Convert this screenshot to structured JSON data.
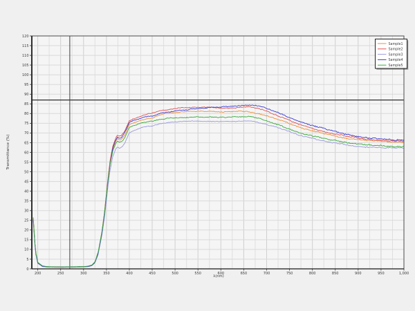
{
  "chart_data": {
    "type": "line",
    "title": "",
    "xlabel": "λ(nm)",
    "ylabel": "Transmittance (%)",
    "xlim": [
      187,
      1000
    ],
    "ylim": [
      0,
      120
    ],
    "grid": "on",
    "minor_x_grid_step_nm": 25,
    "y_grid_step_pct": 5,
    "legend_position": "top-right",
    "cursor": {
      "wavelength_nm": 270,
      "transmittance_pct": 87
    },
    "x_tick_values": [
      200,
      250,
      300,
      350,
      400,
      450,
      500,
      550,
      600,
      650,
      700,
      750,
      800,
      850,
      900,
      950,
      1000
    ],
    "x_tick_labels": [
      "200",
      "250",
      "300",
      "350",
      "400",
      "450",
      "500",
      "550",
      "600",
      "650",
      "700",
      "750",
      "800",
      "850",
      "900",
      "950",
      "1,000"
    ],
    "y_tick_values": [
      0,
      5,
      10,
      15,
      20,
      25,
      30,
      35,
      40,
      45,
      50,
      55,
      60,
      65,
      70,
      75,
      80,
      85,
      90,
      95,
      100,
      105,
      110,
      115,
      120
    ],
    "y_tick_labels": [
      "0",
      "5",
      "10",
      "15",
      "20",
      "25",
      "30",
      "35",
      "40",
      "45",
      "50",
      "55",
      "60",
      "65",
      "70",
      "75",
      "80",
      "85",
      "90",
      "95",
      "100",
      "105",
      "110",
      "115",
      "120"
    ],
    "x": [
      190,
      195,
      200,
      210,
      220,
      240,
      260,
      280,
      300,
      310,
      318,
      325,
      332,
      340,
      346,
      352,
      358,
      364,
      370,
      374,
      378,
      383,
      390,
      400,
      410,
      420,
      430,
      440,
      450,
      460,
      470,
      480,
      490,
      500,
      520,
      540,
      560,
      580,
      600,
      620,
      640,
      660,
      670,
      680,
      700,
      720,
      740,
      760,
      780,
      800,
      820,
      840,
      860,
      880,
      900,
      920,
      940,
      960,
      980,
      1000
    ],
    "series": [
      {
        "name": "Sample1",
        "color": "#ee8f3a",
        "values": [
          26.2,
          9.2,
          3.3,
          1.5,
          1.1,
          1.0,
          0.9,
          1.0,
          1.1,
          1.3,
          1.8,
          3.4,
          8.2,
          18.3,
          29.0,
          42.5,
          54.3,
          61.5,
          65.4,
          66.8,
          66.2,
          66.6,
          68.8,
          74.4,
          75.4,
          76.1,
          77.0,
          77.6,
          77.9,
          78.6,
          79.3,
          79.7,
          80.0,
          80.2,
          80.6,
          80.8,
          80.8,
          80.7,
          80.6,
          80.7,
          80.9,
          81.0,
          80.8,
          80.3,
          79.1,
          77.5,
          75.8,
          73.8,
          72.2,
          71.0,
          69.9,
          68.9,
          68.0,
          67.2,
          66.6,
          66.0,
          65.5,
          65.1,
          64.9,
          64.8
        ]
      },
      {
        "name": "Sample2",
        "color": "#e05050",
        "values": [
          26.0,
          9.0,
          3.2,
          1.4,
          1.1,
          0.9,
          0.9,
          1.0,
          1.1,
          1.3,
          1.8,
          3.5,
          8.5,
          19.0,
          30.0,
          44.0,
          56.0,
          63.5,
          67.5,
          69.0,
          68.4,
          68.8,
          71.2,
          76.5,
          77.5,
          78.1,
          79.0,
          79.6,
          79.9,
          80.6,
          81.3,
          81.7,
          82.0,
          82.2,
          82.6,
          82.8,
          82.9,
          82.8,
          82.6,
          82.7,
          82.9,
          83.1,
          82.9,
          82.4,
          81.1,
          79.4,
          77.6,
          75.4,
          73.6,
          72.2,
          71.0,
          69.9,
          68.9,
          68.1,
          67.3,
          66.7,
          66.1,
          65.7,
          65.4,
          65.3
        ]
      },
      {
        "name": "Sample3",
        "color": "#9a9ade",
        "values": [
          24.8,
          8.2,
          2.8,
          1.2,
          0.9,
          0.8,
          0.8,
          0.9,
          1.0,
          1.1,
          1.6,
          3.1,
          7.5,
          16.8,
          26.8,
          39.5,
          50.8,
          57.8,
          61.6,
          62.9,
          62.4,
          62.7,
          64.7,
          70.4,
          71.4,
          72.0,
          72.8,
          73.3,
          73.6,
          74.1,
          74.6,
          74.9,
          75.1,
          75.2,
          75.5,
          75.6,
          75.6,
          75.5,
          75.4,
          75.5,
          75.6,
          75.7,
          75.5,
          75.0,
          74.0,
          72.6,
          71.1,
          69.4,
          68.0,
          66.9,
          66.0,
          65.1,
          64.3,
          63.6,
          63.1,
          62.6,
          62.3,
          62.0,
          61.9,
          61.8
        ]
      },
      {
        "name": "Sample4",
        "color": "#3a3ad0",
        "values": [
          25.5,
          8.6,
          3.0,
          1.3,
          1.0,
          0.9,
          0.9,
          0.9,
          1.1,
          1.2,
          1.7,
          3.3,
          8.0,
          18.0,
          28.5,
          42.0,
          54.0,
          62.0,
          66.0,
          67.5,
          67.0,
          67.4,
          69.9,
          75.3,
          76.4,
          77.1,
          78.0,
          78.7,
          79.0,
          79.8,
          80.5,
          81.0,
          81.4,
          81.7,
          82.3,
          82.8,
          83.2,
          83.6,
          83.9,
          84.2,
          84.5,
          84.7,
          84.6,
          84.1,
          82.9,
          81.1,
          79.2,
          77.2,
          75.5,
          74.1,
          72.8,
          71.5,
          70.4,
          69.5,
          68.6,
          67.9,
          67.4,
          67.1,
          66.9,
          66.8
        ]
      },
      {
        "name": "Sample5",
        "color": "#3aa83a",
        "values": [
          26.5,
          9.4,
          3.4,
          1.6,
          1.2,
          1.0,
          1.0,
          1.1,
          1.2,
          1.4,
          1.9,
          3.6,
          8.6,
          18.6,
          29.3,
          42.8,
          54.0,
          60.8,
          64.3,
          65.5,
          65.0,
          65.3,
          67.3,
          72.9,
          73.9,
          74.5,
          75.3,
          75.8,
          76.1,
          76.6,
          77.1,
          77.4,
          77.6,
          77.7,
          78.0,
          78.1,
          78.1,
          78.0,
          77.9,
          78.0,
          78.1,
          78.2,
          78.0,
          77.5,
          76.4,
          74.9,
          73.3,
          71.5,
          70.0,
          68.9,
          67.9,
          66.9,
          66.1,
          65.4,
          64.9,
          64.4,
          64.0,
          63.7,
          63.5,
          63.4
        ]
      }
    ]
  }
}
